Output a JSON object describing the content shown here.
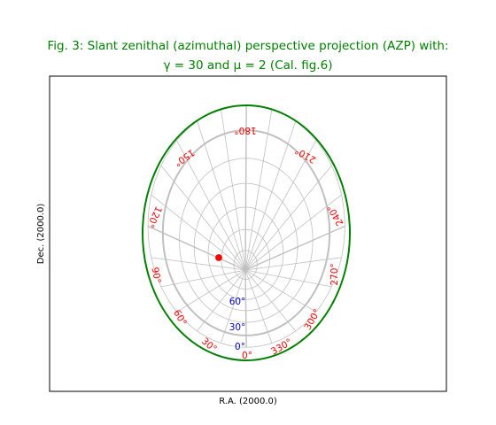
{
  "figure": {
    "title_line1": "Fig. 3: Slant zenithal (azimuthal) perspective projection (AZP) with:",
    "title_line2_prefix": "γ = 30 and μ = 2 (Cal. fig.6)"
  },
  "chart_data": {
    "type": "scatter",
    "title": "Fig. 3: Slant zenithal (azimuthal) perspective projection (AZP) with: γ = 30 and μ = 2 (Cal. fig.6)",
    "xlabel": "R.A. (2000.0)",
    "ylabel": "Dec. (2000.0)",
    "projection": "AZP",
    "gamma": 30,
    "mu": 2,
    "grid": true,
    "ra_tick_labels": [
      "0°",
      "30°",
      "60°",
      "90°",
      "120°",
      "150°",
      "180°",
      "210°",
      "240°",
      "270°",
      "300°",
      "330°"
    ],
    "dec_tick_labels": [
      "0°",
      "30°",
      "60°"
    ],
    "marker": {
      "ra": 120,
      "dec": 60
    },
    "colors": {
      "title": "#008000",
      "border": "#008000",
      "ra_labels": "#ff0000",
      "dec_labels": "#0000cc",
      "grid": "#c0c0c0",
      "marker": "#ff0000"
    }
  }
}
